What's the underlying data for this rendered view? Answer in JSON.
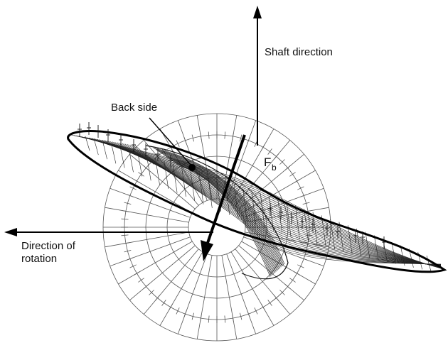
{
  "labels": {
    "shaft_direction": "Shaft direction",
    "back_side": "Back side",
    "force_main": "F",
    "force_sub": "b",
    "rotation_line1": "Direction of",
    "rotation_line2": "rotation"
  },
  "colors": {
    "ink": "#111111",
    "mesh": "#222222",
    "grid": "#555555",
    "background": "#ffffff"
  }
}
